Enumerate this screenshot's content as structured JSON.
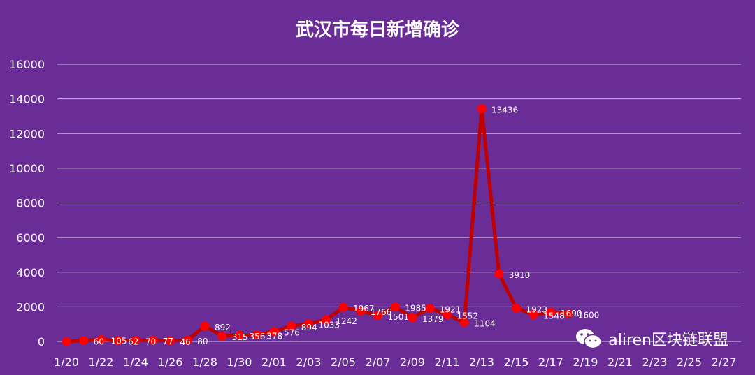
{
  "chart_data": {
    "type": "line",
    "title": "武汉市每日新增确诊",
    "ylim": [
      0,
      16000
    ],
    "yticks": [
      0,
      2000,
      4000,
      6000,
      8000,
      10000,
      12000,
      14000,
      16000
    ],
    "xtick_labels": [
      "1/20",
      "1/22",
      "1/24",
      "1/26",
      "1/28",
      "1/30",
      "2/01",
      "2/03",
      "2/05",
      "2/07",
      "2/09",
      "2/11",
      "2/13",
      "2/15",
      "2/17",
      "2/19",
      "2/21",
      "2/23",
      "2/25",
      "2/27"
    ],
    "grid": true,
    "series": [
      {
        "dates": [
          "1/20",
          "1/21",
          "1/22",
          "1/23",
          "1/24",
          "1/25",
          "1/26",
          "1/27",
          "1/28",
          "1/29",
          "1/30",
          "1/31",
          "2/01",
          "2/02",
          "2/03",
          "2/04",
          "2/05",
          "2/06",
          "2/07",
          "2/08",
          "2/09",
          "2/10",
          "2/11",
          "2/12",
          "2/13",
          "2/14",
          "2/15",
          "2/16",
          "2/17",
          "2/18"
        ],
        "values": [
          0,
          60,
          105,
          62,
          70,
          77,
          46,
          80,
          892,
          315,
          356,
          378,
          576,
          894,
          1033,
          1242,
          1967,
          1766,
          1501,
          1985,
          1379,
          1921,
          1552,
          1104,
          13436,
          3910,
          1923,
          1548,
          1690,
          1600
        ],
        "labels": [
          "",
          "60",
          "105",
          "62",
          "70",
          "77",
          "46",
          "80",
          "892",
          "315",
          "356",
          "378",
          "576",
          "894",
          "1033",
          "1242",
          "1967",
          "1766",
          "1501",
          "1985",
          "1379",
          "1921",
          "1552",
          "1104",
          "13436",
          "3910",
          "1923",
          "1548",
          "1690",
          "1600"
        ],
        "color": "#c00000",
        "marker_color": "#ff0000"
      }
    ]
  },
  "watermark": {
    "text": "aliren区块链联盟",
    "icon": "wechat-icon"
  }
}
